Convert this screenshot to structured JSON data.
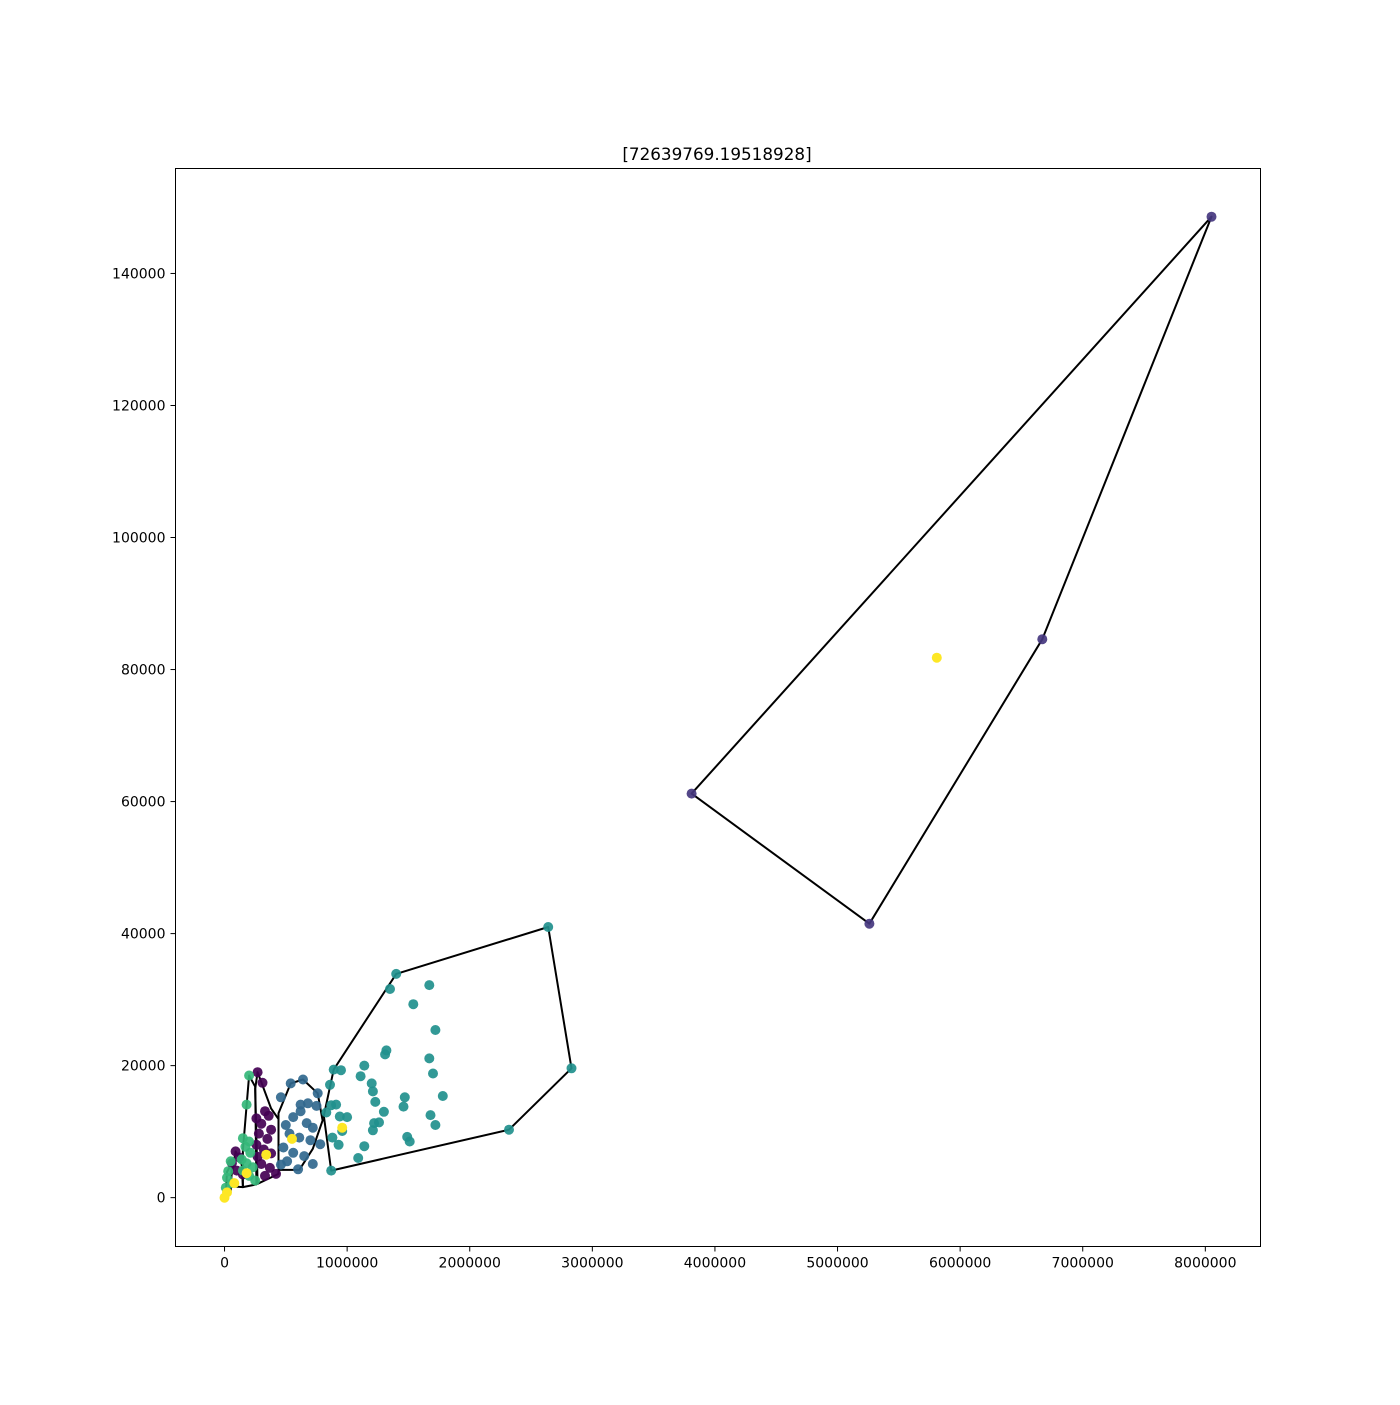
{
  "chart_data": {
    "type": "scatter",
    "title": "[72639769.19518928]",
    "xlabel": "",
    "ylabel": "",
    "xlim": [
      -400000,
      8450000
    ],
    "ylim": [
      -7400,
      155900
    ],
    "x_ticks": [
      0,
      1000000,
      2000000,
      3000000,
      4000000,
      5000000,
      6000000,
      7000000,
      8000000
    ],
    "x_tick_labels": [
      "0",
      "1000000",
      "2000000",
      "3000000",
      "4000000",
      "5000000",
      "6000000",
      "7000000",
      "8000000"
    ],
    "y_ticks": [
      0,
      20000,
      40000,
      60000,
      80000,
      100000,
      120000,
      140000
    ],
    "y_tick_labels": [
      "0",
      "20000",
      "40000",
      "60000",
      "80000",
      "100000",
      "120000",
      "140000"
    ],
    "grid": false,
    "legend": "none",
    "colors": {
      "cluster_0": "#440154",
      "cluster_1": "#3b528b",
      "cluster_2": "#31688e",
      "cluster_3": "#21908d",
      "cluster_4": "#35b779",
      "cluster_5": "#45377f",
      "centroid": "#fde725",
      "hull": "#000000"
    },
    "series": [
      {
        "color": "cluster_5",
        "points": [
          [
            3810000,
            61200
          ],
          [
            5260000,
            41500
          ],
          [
            6670000,
            84600
          ],
          [
            8050000,
            148600
          ]
        ]
      },
      {
        "color": "cluster_3",
        "points": [
          [
            2640000,
            41000
          ],
          [
            2830000,
            19600
          ],
          [
            2320000,
            10300
          ],
          [
            1400000,
            33900
          ],
          [
            1350000,
            31600
          ],
          [
            1540000,
            29300
          ],
          [
            1670000,
            32200
          ],
          [
            1720000,
            25400
          ],
          [
            1310000,
            21700
          ],
          [
            1320000,
            22300
          ],
          [
            1140000,
            20000
          ],
          [
            1670000,
            21100
          ],
          [
            1700000,
            18800
          ],
          [
            1780000,
            15400
          ],
          [
            1200000,
            17300
          ],
          [
            1210000,
            16100
          ],
          [
            1110000,
            18400
          ],
          [
            1470000,
            15200
          ],
          [
            1230000,
            14500
          ],
          [
            1300000,
            13000
          ],
          [
            1460000,
            13800
          ],
          [
            1680000,
            12500
          ],
          [
            1720000,
            11000
          ],
          [
            1000000,
            12200
          ],
          [
            1220000,
            11300
          ],
          [
            1260000,
            11400
          ],
          [
            1210000,
            10200
          ],
          [
            1490000,
            9200
          ],
          [
            1510000,
            8500
          ],
          [
            1140000,
            7800
          ],
          [
            1090000,
            6000
          ],
          [
            950000,
            19300
          ],
          [
            890000,
            19400
          ],
          [
            860000,
            17100
          ],
          [
            870000,
            14000
          ],
          [
            910000,
            14100
          ],
          [
            830000,
            12900
          ],
          [
            960000,
            10100
          ],
          [
            880000,
            9100
          ],
          [
            930000,
            8000
          ],
          [
            870000,
            4100
          ],
          [
            940000,
            12300
          ]
        ]
      },
      {
        "color": "cluster_2",
        "points": [
          [
            640000,
            17900
          ],
          [
            540000,
            17300
          ],
          [
            460000,
            15200
          ],
          [
            760000,
            15800
          ],
          [
            620000,
            14100
          ],
          [
            680000,
            14300
          ],
          [
            750000,
            13900
          ],
          [
            620000,
            13100
          ],
          [
            560000,
            12200
          ],
          [
            670000,
            11300
          ],
          [
            720000,
            10600
          ],
          [
            500000,
            11000
          ],
          [
            530000,
            9700
          ],
          [
            610000,
            9100
          ],
          [
            700000,
            8700
          ],
          [
            780000,
            8100
          ],
          [
            480000,
            7600
          ],
          [
            560000,
            6800
          ],
          [
            650000,
            6300
          ],
          [
            510000,
            5500
          ],
          [
            600000,
            4300
          ],
          [
            720000,
            5100
          ],
          [
            460000,
            5000
          ]
        ]
      },
      {
        "color": "cluster_0",
        "points": [
          [
            270000,
            19000
          ],
          [
            310000,
            17400
          ],
          [
            330000,
            13100
          ],
          [
            360000,
            12400
          ],
          [
            260000,
            12000
          ],
          [
            300000,
            11200
          ],
          [
            380000,
            10300
          ],
          [
            280000,
            9700
          ],
          [
            350000,
            8900
          ],
          [
            260000,
            8000
          ],
          [
            320000,
            7300
          ],
          [
            380000,
            6700
          ],
          [
            270000,
            6200
          ],
          [
            300000,
            5100
          ],
          [
            370000,
            4500
          ],
          [
            330000,
            3300
          ],
          [
            420000,
            3600
          ],
          [
            90000,
            7000
          ],
          [
            120000,
            6100
          ],
          [
            60000,
            5200
          ],
          [
            100000,
            4100
          ],
          [
            150000,
            3500
          ]
        ]
      },
      {
        "color": "cluster_4",
        "points": [
          [
            200000,
            18500
          ],
          [
            180000,
            14100
          ],
          [
            150000,
            9000
          ],
          [
            200000,
            8500
          ],
          [
            170000,
            7700
          ],
          [
            210000,
            6800
          ],
          [
            140000,
            5800
          ],
          [
            180000,
            5200
          ],
          [
            230000,
            4600
          ],
          [
            150000,
            4100
          ],
          [
            200000,
            3300
          ],
          [
            250000,
            2600
          ],
          [
            30000,
            4000
          ],
          [
            50000,
            5500
          ],
          [
            20000,
            3000
          ],
          [
            60000,
            2200
          ],
          [
            10000,
            1500
          ]
        ]
      },
      {
        "color": "centroid",
        "centroid": true,
        "points": [
          [
            5810000,
            81800
          ],
          [
            960000,
            10600
          ],
          [
            550000,
            8900
          ],
          [
            340000,
            6500
          ],
          [
            180000,
            3700
          ],
          [
            80000,
            2200
          ],
          [
            20000,
            800
          ],
          [
            0,
            0
          ]
        ]
      }
    ],
    "hulls": [
      [
        [
          3810000,
          61200
        ],
        [
          5260000,
          41500
        ],
        [
          6670000,
          84600
        ],
        [
          8050000,
          148600
        ]
      ],
      [
        [
          1400000,
          33900
        ],
        [
          2640000,
          41000
        ],
        [
          2830000,
          19600
        ],
        [
          2320000,
          10300
        ],
        [
          870000,
          4100
        ],
        [
          810000,
          12400
        ],
        [
          890000,
          19400
        ]
      ],
      [
        [
          640000,
          17900
        ],
        [
          540000,
          17300
        ],
        [
          440000,
          12800
        ],
        [
          440000,
          4200
        ],
        [
          610000,
          4200
        ],
        [
          720000,
          7400
        ],
        [
          800000,
          11700
        ],
        [
          760000,
          15800
        ]
      ],
      [
        [
          270000,
          19000
        ],
        [
          250000,
          16500
        ],
        [
          270000,
          2100
        ],
        [
          440000,
          3600
        ],
        [
          440000,
          11900
        ],
        [
          380000,
          13500
        ]
      ],
      [
        [
          200000,
          18500
        ],
        [
          150000,
          7200
        ],
        [
          150000,
          1600
        ],
        [
          260000,
          2000
        ],
        [
          250000,
          16800
        ]
      ],
      [
        [
          90000,
          7000
        ],
        [
          50000,
          2600
        ],
        [
          60000,
          1700
        ],
        [
          150000,
          1600
        ],
        [
          140000,
          5000
        ]
      ],
      [
        [
          20000,
          3900
        ],
        [
          10000,
          400
        ],
        [
          50000,
          1000
        ],
        [
          60000,
          5200
        ]
      ]
    ]
  }
}
